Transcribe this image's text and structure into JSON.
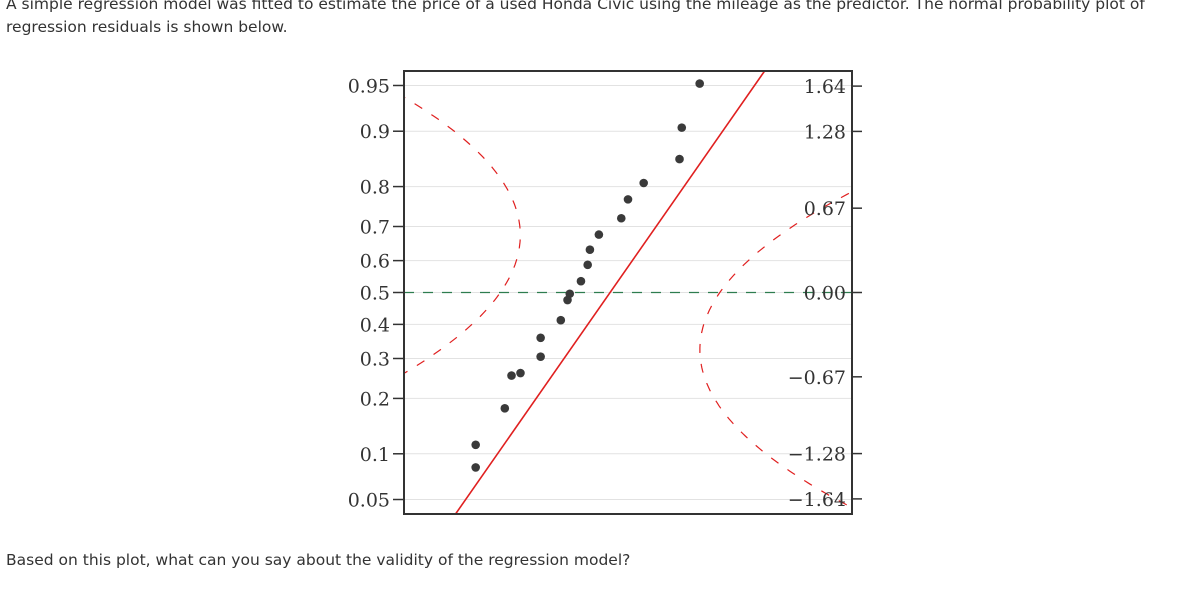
{
  "question": {
    "intro": "A simple regression model was fitted to estimate the price of a used Honda Civic using the mileage as the predictor. The normal probability plot of regression residuals is shown below.",
    "prompt": "Based on this plot, what can you say about the validity of the regression model?"
  },
  "chart_data": {
    "type": "scatter",
    "title": "",
    "xlabel": "",
    "ylabel": "",
    "left_axis": {
      "label": "",
      "scale": "normal-probability",
      "tick_labels": [
        "0.95",
        "0.9",
        "0.8",
        "0.7",
        "0.6",
        "0.5",
        "0.4",
        "0.3",
        "0.2",
        "0.1",
        "0.05"
      ],
      "tick_values": [
        0.95,
        0.9,
        0.8,
        0.7,
        0.6,
        0.5,
        0.4,
        0.3,
        0.2,
        0.1,
        0.05
      ]
    },
    "right_axis": {
      "label": "",
      "tick_labels": [
        "1.64",
        "1.28",
        "0.67",
        "0.00",
        "−0.67",
        "−1.28",
        "−1.64"
      ],
      "tick_values": [
        1.64,
        1.28,
        0.67,
        0.0,
        -0.67,
        -1.28,
        -1.64
      ]
    },
    "z_range": [
      -1.76,
      1.76
    ],
    "x_range": [
      0,
      100
    ],
    "grid": true,
    "points": [
      {
        "x": 66,
        "z": 1.66
      },
      {
        "x": 62,
        "z": 1.31
      },
      {
        "x": 61.5,
        "z": 1.06
      },
      {
        "x": 53.5,
        "z": 0.87
      },
      {
        "x": 50,
        "z": 0.74
      },
      {
        "x": 48.5,
        "z": 0.59
      },
      {
        "x": 43.5,
        "z": 0.46
      },
      {
        "x": 41.5,
        "z": 0.34
      },
      {
        "x": 41,
        "z": 0.22
      },
      {
        "x": 39.5,
        "z": 0.09
      },
      {
        "x": 37,
        "z": -0.01
      },
      {
        "x": 36.5,
        "z": -0.06
      },
      {
        "x": 35,
        "z": -0.22
      },
      {
        "x": 30.5,
        "z": -0.36
      },
      {
        "x": 30.5,
        "z": -0.51
      },
      {
        "x": 26,
        "z": -0.64
      },
      {
        "x": 24,
        "z": -0.66
      },
      {
        "x": 22.5,
        "z": -0.92
      },
      {
        "x": 16,
        "z": -1.21
      },
      {
        "x": 16,
        "z": -1.39
      }
    ],
    "fit_line": {
      "x_at_z0": 46,
      "x_per_z": 19.6
    },
    "reference_line_z": 0.0,
    "colors": {
      "fit_line": "#e02020",
      "band": "#e02020",
      "reference": "#2e7d4f",
      "points": "#3a3a3a",
      "grid": "#e2e2e2",
      "frame": "#333333",
      "text": "#333333"
    }
  }
}
